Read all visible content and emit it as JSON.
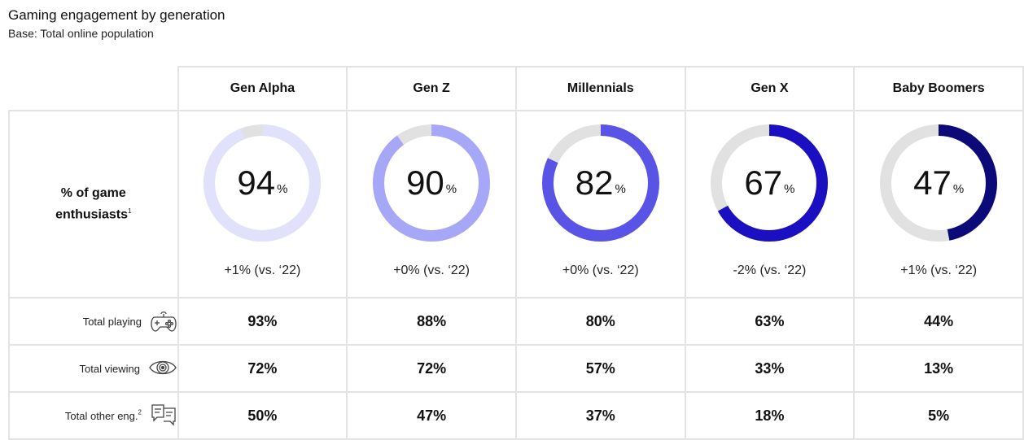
{
  "title": "Gaming engagement by generation",
  "subtitle": "Base: Total online population",
  "row_label": "% of game enthusiasts",
  "row_label_line1": "% of game",
  "row_label_line2": "enthusiasts",
  "row_label_footnote": "1",
  "percent_sign": "%",
  "chart_data": {
    "type": "donut",
    "title": "Gaming engagement by generation",
    "categories": [
      "Gen Alpha",
      "Gen Z",
      "Millennials",
      "Gen X",
      "Baby Boomers"
    ],
    "series": [
      {
        "name": "% of game enthusiasts",
        "values": [
          94,
          90,
          82,
          67,
          47
        ]
      }
    ],
    "changes": [
      "+1% (vs. ‘22)",
      "+0% (vs. ‘22)",
      "+0% (vs. ‘22)",
      "-2% (vs. ‘22)",
      "+1% (vs. ‘22)"
    ],
    "colors": [
      "#e1e1fb",
      "#a7a7f7",
      "#5a54e6",
      "#1a10c2",
      "#0b0a78"
    ],
    "track_color": "#e1e1e1"
  },
  "columns": [
    {
      "label": "Gen Alpha",
      "value": "94",
      "change": "+1% (vs. ‘22)"
    },
    {
      "label": "Gen Z",
      "value": "90",
      "change": "+0% (vs. ‘22)"
    },
    {
      "label": "Millennials",
      "value": "82",
      "change": "+0% (vs. ‘22)"
    },
    {
      "label": "Gen X",
      "value": "67",
      "change": "-2% (vs. ‘22)"
    },
    {
      "label": "Baby Boomers",
      "value": "47",
      "change": "+1% (vs. ‘22)"
    }
  ],
  "metrics": [
    {
      "label": "Total playing",
      "footnote": "",
      "icon": "gamepad-icon",
      "values": [
        "93%",
        "88%",
        "80%",
        "63%",
        "44%"
      ]
    },
    {
      "label": "Total viewing",
      "footnote": "",
      "icon": "eye-icon",
      "values": [
        "72%",
        "72%",
        "57%",
        "33%",
        "13%"
      ]
    },
    {
      "label": "Total other eng.",
      "footnote": "2",
      "icon": "chat-icon",
      "values": [
        "50%",
        "47%",
        "37%",
        "18%",
        "5%"
      ]
    }
  ]
}
